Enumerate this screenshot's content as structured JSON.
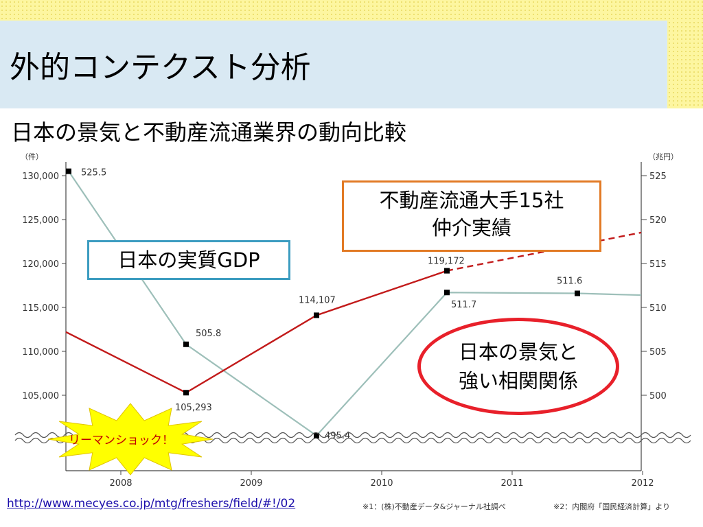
{
  "slide": {
    "title": "外的コンテクスト分析",
    "subtitle": "日本の景気と不動産流通業界の動向比較"
  },
  "callouts": {
    "orange_line1": "不動産流通大手15社",
    "orange_line2": "仲介実績",
    "blue": "日本の実質GDP",
    "red_line1": "日本の景気と",
    "red_line2": "強い相関関係",
    "burst": "リーマンショック！"
  },
  "source": {
    "link": "http://www.mecyes.co.jp/mtg/freshers/field/#!/02",
    "footnote1": "※1：(株)不動産データ&ジャーナル社調べ",
    "footnote2": "※2：内閣府「国民経済計算」より"
  },
  "colors": {
    "red_series": "#c21a1a",
    "gdp_series": "#9dbfb9",
    "orange_border": "#e27a25",
    "blue_border": "#3c9cc0",
    "red_ellipse": "#e8202a",
    "burst_fill": "#ffff00"
  },
  "chart_data": {
    "type": "line",
    "x_ticks": [
      "2008",
      "2009",
      "2010",
      "2011",
      "2012"
    ],
    "y_left": {
      "unit": "（件）",
      "ticks": [
        "130,000",
        "125,000",
        "120,000",
        "115,000",
        "110,000",
        "105,000"
      ],
      "ylim": [
        100000,
        130000
      ]
    },
    "y_right": {
      "unit": "（兆円）",
      "ticks": [
        "525",
        "520",
        "515",
        "510",
        "505",
        "500"
      ],
      "ylim": [
        495,
        525
      ]
    },
    "series": [
      {
        "name": "不動産流通大手15社 仲介実績",
        "axis": "left",
        "x": [
          2007.5,
          2008.5,
          2009.5,
          2010.5,
          2011.5
        ],
        "y": [
          112200,
          105293,
          114107,
          119172,
          122900
        ],
        "labels": [
          "",
          "105,293",
          "114,107",
          "119,172",
          ""
        ],
        "projected_from_index": 3
      },
      {
        "name": "日本の実質GDP",
        "axis": "right",
        "x": [
          2007.5,
          2008.5,
          2009.5,
          2010.5,
          2011.5,
          2012
        ],
        "y": [
          525.5,
          505.8,
          495.4,
          511.7,
          511.6,
          511.4
        ],
        "labels": [
          "525.5",
          "505.8",
          "495.4",
          "511.7",
          "511.6",
          ""
        ]
      }
    ],
    "grid": false
  }
}
